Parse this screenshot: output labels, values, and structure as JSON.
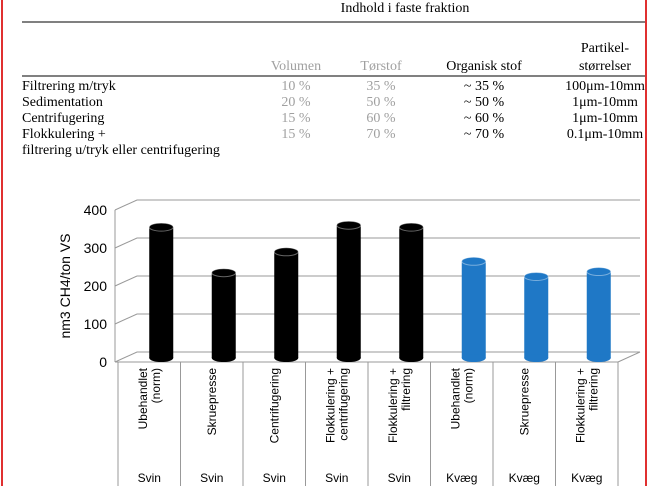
{
  "table": {
    "title": "Indhold i faste fraktion",
    "columns": [
      "Volumen",
      "Tørstof",
      "Organisk stof",
      [
        "Partikel-",
        "størrelser"
      ]
    ],
    "rows": [
      [
        [
          "Filtrering m/tryk"
        ],
        "10 %",
        "35 %",
        "~ 35 %",
        "100μm-10mm"
      ],
      [
        [
          "Sedimentation"
        ],
        "20 %",
        "50 %",
        "~ 50 %",
        "1μm-10mm"
      ],
      [
        [
          "Centrifugering"
        ],
        "15 %",
        "60 %",
        "~ 60 %",
        "1μm-10mm"
      ],
      [
        [
          "Flokkulering +",
          "filtrering u/tryk eller centrifugering"
        ],
        "15 %",
        "70 %",
        "~ 70 %",
        "0.1μm-10mm"
      ]
    ]
  },
  "chart_data": {
    "type": "bar",
    "ylabel": "nm3 CH4/ton VS",
    "categories": [
      [
        "Ubehandlet",
        "(norm)"
      ],
      [
        "Skruepresse"
      ],
      [
        "Centrifugering"
      ],
      [
        "Flokkulering +",
        "centrifugering"
      ],
      [
        "Flokkulering +",
        "filtrering"
      ],
      [
        "Ubehandlet",
        "(norm)"
      ],
      [
        "Skruepresse"
      ],
      [
        "Flokkulering +",
        "filtrering"
      ]
    ],
    "groups": [
      "Svin",
      "Svin",
      "Svin",
      "Svin",
      "Svin",
      "Kvæg",
      "Kvæg",
      "Kvæg"
    ],
    "values": [
      355,
      235,
      290,
      360,
      355,
      265,
      225,
      238
    ],
    "colors": [
      "#000000",
      "#000000",
      "#000000",
      "#000000",
      "#000000",
      "#1f78c6",
      "#1f78c6",
      "#1f78c6"
    ],
    "ylim": [
      0,
      400
    ],
    "yticks": [
      0,
      100,
      200,
      300,
      400
    ],
    "grid": true
  }
}
